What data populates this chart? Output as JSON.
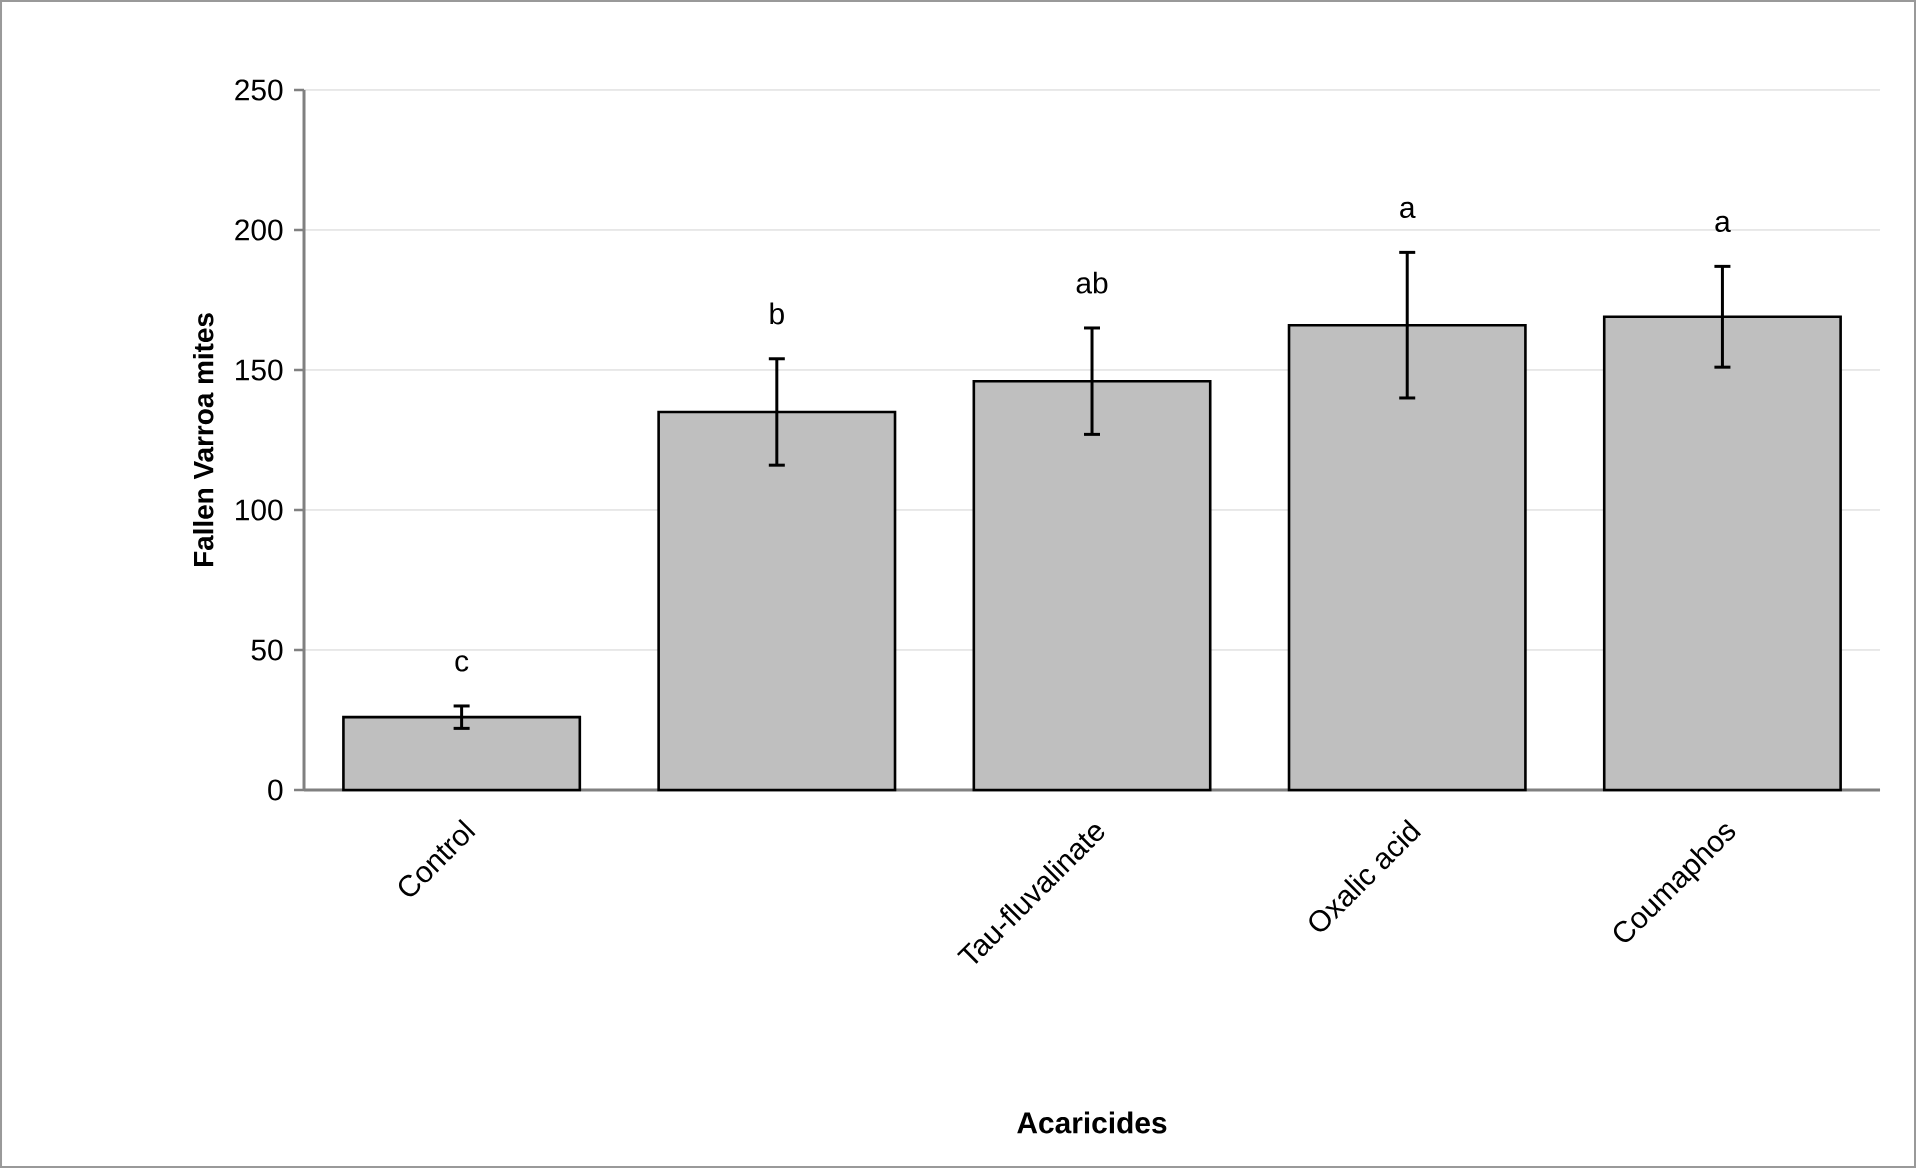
{
  "chart_data": {
    "type": "bar",
    "xlabel": "Acaricides",
    "ylabel": "Fallen Varroa mites",
    "categories": [
      "Control",
      null,
      "Tau-fluvalinate",
      "Oxalic acid",
      "Coumaphos"
    ],
    "values": [
      26,
      135,
      146,
      166,
      169
    ],
    "errors": [
      4,
      19,
      19,
      26,
      18
    ],
    "color": "#bfbfbf",
    "ylim": [
      0,
      250
    ],
    "yticks": [
      0,
      50,
      100,
      150,
      200,
      250
    ],
    "grid": "y",
    "annotations": [
      "c",
      "b",
      "ab",
      "a",
      "a"
    ]
  }
}
